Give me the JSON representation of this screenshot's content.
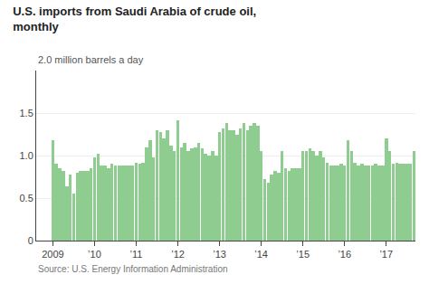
{
  "chart_data": {
    "type": "bar",
    "title": [
      "U.S. imports from Saudi Arabia of crude oil,",
      "monthly"
    ],
    "ylabel": "2.0 million barrels a day",
    "annotations": [
      "Source: U.S. Energy Information Administration"
    ],
    "color": "#8fcc8f",
    "x": [
      2009,
      2009.0833333333,
      2009.1666666667,
      2009.25,
      2009.3333333333,
      2009.4166666667,
      2009.5,
      2009.5833333333,
      2009.6666666667,
      2009.75,
      2009.8333333333,
      2009.9166666667,
      2010,
      2010.0833333333,
      2010.1666666667,
      2010.25,
      2010.3333333333,
      2010.4166666667,
      2010.5,
      2010.5833333333,
      2010.6666666667,
      2010.75,
      2010.8333333333,
      2010.9166666667,
      2011,
      2011.0833333333,
      2011.1666666667,
      2011.25,
      2011.3333333333,
      2011.4166666667,
      2011.5,
      2011.5833333333,
      2011.6666666667,
      2011.75,
      2011.8333333333,
      2011.9166666667,
      2012,
      2012.0833333333,
      2012.1666666667,
      2012.25,
      2012.3333333333,
      2012.4166666667,
      2012.5,
      2012.5833333333,
      2012.6666666667,
      2012.75,
      2012.8333333333,
      2012.9166666667,
      2013,
      2013.0833333333,
      2013.1666666667,
      2013.25,
      2013.3333333333,
      2013.4166666667,
      2013.5,
      2013.5833333333,
      2013.6666666667,
      2013.75,
      2013.8333333333,
      2013.9166666667,
      2014,
      2014.0833333333,
      2014.1666666667,
      2014.25,
      2014.3333333333,
      2014.4166666667,
      2014.5,
      2014.5833333333,
      2014.6666666667,
      2014.75,
      2014.8333333333,
      2014.9166666667,
      2015,
      2015.0833333333,
      2015.1666666667,
      2015.25,
      2015.3333333333,
      2015.4166666667,
      2015.5,
      2015.5833333333,
      2015.6666666667,
      2015.75,
      2015.8333333333,
      2015.9166666667,
      2016,
      2016.0833333333,
      2016.1666666667,
      2016.25,
      2016.3333333333,
      2016.4166666667,
      2016.5,
      2016.5833333333,
      2016.6666666667,
      2016.75,
      2016.8333333333,
      2016.9166666667,
      2017,
      2017.0833333333,
      2017.1666666667,
      2017.25,
      2017.3333333333,
      2017.4166666667,
      2017.5,
      2017.5833333333,
      2017.6666666667
    ],
    "values": [
      1.18,
      0.9,
      0.85,
      0.82,
      0.64,
      0.78,
      0.55,
      0.8,
      0.82,
      0.82,
      0.82,
      0.85,
      0.98,
      1.02,
      0.88,
      0.88,
      0.85,
      0.9,
      0.88,
      0.88,
      0.88,
      0.88,
      0.88,
      0.88,
      0.92,
      0.9,
      0.92,
      1.1,
      1.18,
      0.98,
      1.3,
      1.28,
      1.2,
      1.3,
      1.12,
      1.05,
      1.42,
      1.1,
      1.15,
      1.05,
      1.08,
      1.1,
      1.15,
      1.08,
      1.02,
      1.0,
      1.05,
      1.0,
      1.28,
      1.32,
      1.38,
      1.3,
      1.3,
      1.25,
      1.32,
      1.38,
      1.3,
      1.35,
      1.38,
      1.35,
      1.05,
      0.72,
      0.68,
      0.78,
      0.82,
      0.8,
      1.05,
      0.85,
      0.82,
      0.85,
      0.85,
      0.85,
      1.05,
      1.05,
      1.08,
      1.05,
      1.0,
      1.05,
      0.98,
      0.92,
      0.88,
      0.88,
      0.88,
      0.9,
      0.88,
      1.18,
      1.05,
      0.92,
      0.88,
      0.9,
      0.88,
      0.88,
      0.88,
      0.9,
      0.88,
      0.88,
      1.2,
      1.05,
      0.9,
      0.92,
      0.9,
      0.9,
      0.9,
      0.9,
      1.05
    ],
    "xlim": [
      2008.6,
      2017.7
    ],
    "xticks": [
      {
        "value": 2009,
        "label": "2009"
      },
      {
        "value": 2010,
        "label": "’10"
      },
      {
        "value": 2011,
        "label": "’11"
      },
      {
        "value": 2012,
        "label": "’12"
      },
      {
        "value": 2013,
        "label": "’13"
      },
      {
        "value": 2014,
        "label": "’14"
      },
      {
        "value": 2015,
        "label": "’15"
      },
      {
        "value": 2016,
        "label": "’16"
      },
      {
        "value": 2017,
        "label": "’17"
      }
    ],
    "ylim": [
      0,
      2.0
    ],
    "yticks": [
      0,
      0.5,
      {
        "value": 1.0,
        "label": "1.0"
      },
      1.5
    ],
    "grid": true
  }
}
